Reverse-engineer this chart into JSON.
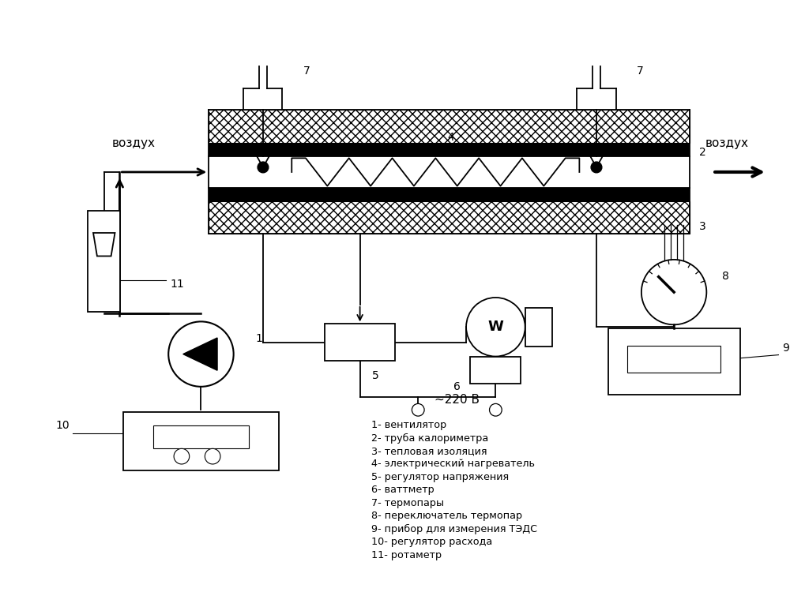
{
  "bg_color": "#ffffff",
  "line_color": "#000000",
  "legend_items": [
    "1- вентилятор",
    "2- труба калориметра",
    "3- тепловая изоляция",
    "4- электрический нагреватель",
    "5- регулятор напряжения",
    "6- ваттметр",
    "7- термопары",
    "8- переключатель термопар",
    "9- прибор для измерения ТЭДС",
    "10- регулятор расхода",
    "11- ротаметр"
  ]
}
